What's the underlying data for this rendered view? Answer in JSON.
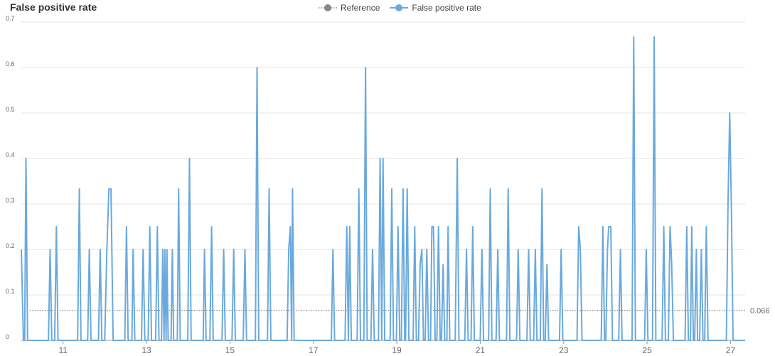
{
  "chart_data": {
    "type": "line",
    "title": "False positive rate",
    "legend": [
      {
        "label": "Reference",
        "color": "#888888",
        "style": "dotted"
      },
      {
        "label": "False positive rate",
        "color": "#6aa9dd",
        "style": "solid"
      }
    ],
    "legend_placement": "top-center",
    "xlabel": "",
    "ylabel": "",
    "xlim": [
      10,
      27.35
    ],
    "ylim": [
      0,
      0.7
    ],
    "x_ticks": [
      "11",
      "13",
      "15",
      "17",
      "19",
      "21",
      "23",
      "25",
      "27"
    ],
    "y_ticks": [
      "0",
      "0.1",
      "0.2",
      "0.3",
      "0.4",
      "0.5",
      "0.6",
      "0.7"
    ],
    "grid": "horizontal",
    "reference": {
      "value": 0.066,
      "label": "0.066"
    },
    "series": [
      {
        "name": "False positive rate",
        "color": "#6aa9dd",
        "points": [
          [
            10.0,
            0.2
          ],
          [
            10.05,
            0
          ],
          [
            10.08,
            0
          ],
          [
            10.11,
            0.4
          ],
          [
            10.15,
            0
          ],
          [
            10.65,
            0
          ],
          [
            10.69,
            0.2
          ],
          [
            10.73,
            0
          ],
          [
            10.8,
            0
          ],
          [
            10.84,
            0.25
          ],
          [
            10.88,
            0
          ],
          [
            11.35,
            0
          ],
          [
            11.39,
            0.333
          ],
          [
            11.43,
            0
          ],
          [
            11.59,
            0
          ],
          [
            11.63,
            0.2
          ],
          [
            11.67,
            0
          ],
          [
            11.85,
            0
          ],
          [
            11.89,
            0.2
          ],
          [
            11.93,
            0
          ],
          [
            12.0,
            0
          ],
          [
            12.05,
            0.2
          ],
          [
            12.1,
            0.333
          ],
          [
            12.15,
            0.333
          ],
          [
            12.2,
            0
          ],
          [
            12.48,
            0
          ],
          [
            12.52,
            0.25
          ],
          [
            12.56,
            0
          ],
          [
            12.65,
            0
          ],
          [
            12.68,
            0.2
          ],
          [
            12.72,
            0
          ],
          [
            12.88,
            0
          ],
          [
            12.92,
            0.2
          ],
          [
            12.96,
            0
          ],
          [
            13.04,
            0
          ],
          [
            13.08,
            0.25
          ],
          [
            13.12,
            0
          ],
          [
            13.22,
            0
          ],
          [
            13.26,
            0.25
          ],
          [
            13.3,
            0
          ],
          [
            13.36,
            0
          ],
          [
            13.39,
            0.2
          ],
          [
            13.42,
            0
          ],
          [
            13.44,
            0.2
          ],
          [
            13.47,
            0
          ],
          [
            13.49,
            0.2
          ],
          [
            13.52,
            0
          ],
          [
            13.59,
            0
          ],
          [
            13.62,
            0.2
          ],
          [
            13.65,
            0
          ],
          [
            13.74,
            0
          ],
          [
            13.77,
            0.333
          ],
          [
            13.81,
            0
          ],
          [
            13.99,
            0
          ],
          [
            14.03,
            0.4
          ],
          [
            14.07,
            0
          ],
          [
            14.36,
            0
          ],
          [
            14.39,
            0.2
          ],
          [
            14.43,
            0
          ],
          [
            14.52,
            0
          ],
          [
            14.56,
            0.25
          ],
          [
            14.6,
            0
          ],
          [
            14.81,
            0
          ],
          [
            14.85,
            0.2
          ],
          [
            14.89,
            0
          ],
          [
            15.05,
            0
          ],
          [
            15.09,
            0.2
          ],
          [
            15.13,
            0
          ],
          [
            15.32,
            0
          ],
          [
            15.36,
            0.2
          ],
          [
            15.4,
            0
          ],
          [
            15.61,
            0
          ],
          [
            15.65,
            0.6
          ],
          [
            15.69,
            0
          ],
          [
            15.9,
            0
          ],
          [
            15.94,
            0.333
          ],
          [
            15.98,
            0
          ],
          [
            16.37,
            0
          ],
          [
            16.41,
            0.2
          ],
          [
            16.45,
            0.25
          ],
          [
            16.48,
            0
          ],
          [
            16.5,
            0.333
          ],
          [
            16.54,
            0
          ],
          [
            17.43,
            0
          ],
          [
            17.47,
            0.2
          ],
          [
            17.51,
            0
          ],
          [
            17.76,
            0
          ],
          [
            17.8,
            0.25
          ],
          [
            17.84,
            0
          ],
          [
            17.87,
            0.25
          ],
          [
            17.91,
            0
          ],
          [
            18.05,
            0
          ],
          [
            18.09,
            0.333
          ],
          [
            18.13,
            0
          ],
          [
            18.21,
            0
          ],
          [
            18.25,
            0.6
          ],
          [
            18.29,
            0
          ],
          [
            18.38,
            0
          ],
          [
            18.42,
            0.2
          ],
          [
            18.46,
            0
          ],
          [
            18.56,
            0
          ],
          [
            18.6,
            0.4
          ],
          [
            18.64,
            0
          ],
          [
            18.67,
            0.4
          ],
          [
            18.71,
            0
          ],
          [
            18.84,
            0
          ],
          [
            18.88,
            0.333
          ],
          [
            18.92,
            0
          ],
          [
            18.99,
            0
          ],
          [
            19.03,
            0.25
          ],
          [
            19.07,
            0
          ],
          [
            19.11,
            0
          ],
          [
            19.15,
            0.333
          ],
          [
            19.19,
            0
          ],
          [
            19.21,
            0
          ],
          [
            19.25,
            0.333
          ],
          [
            19.29,
            0
          ],
          [
            19.39,
            0
          ],
          [
            19.43,
            0.25
          ],
          [
            19.47,
            0
          ],
          [
            19.52,
            0
          ],
          [
            19.56,
            0.167
          ],
          [
            19.6,
            0.2
          ],
          [
            19.64,
            0
          ],
          [
            19.68,
            0
          ],
          [
            19.72,
            0.2
          ],
          [
            19.76,
            0
          ],
          [
            19.81,
            0
          ],
          [
            19.84,
            0.25
          ],
          [
            19.88,
            0.25
          ],
          [
            19.92,
            0
          ],
          [
            19.96,
            0
          ],
          [
            20.0,
            0.25
          ],
          [
            20.04,
            0
          ],
          [
            20.07,
            0
          ],
          [
            20.11,
            0.167
          ],
          [
            20.15,
            0
          ],
          [
            20.2,
            0
          ],
          [
            20.23,
            0.25
          ],
          [
            20.27,
            0
          ],
          [
            20.4,
            0
          ],
          [
            20.45,
            0.4
          ],
          [
            20.49,
            0
          ],
          [
            20.63,
            0
          ],
          [
            20.67,
            0.2
          ],
          [
            20.71,
            0
          ],
          [
            20.78,
            0
          ],
          [
            20.82,
            0.25
          ],
          [
            20.86,
            0
          ],
          [
            21.0,
            0
          ],
          [
            21.04,
            0.2
          ],
          [
            21.08,
            0
          ],
          [
            21.2,
            0
          ],
          [
            21.24,
            0.333
          ],
          [
            21.28,
            0
          ],
          [
            21.38,
            0
          ],
          [
            21.42,
            0.2
          ],
          [
            21.46,
            0
          ],
          [
            21.63,
            0
          ],
          [
            21.67,
            0.333
          ],
          [
            21.71,
            0
          ],
          [
            21.87,
            0
          ],
          [
            21.91,
            0.2
          ],
          [
            21.95,
            0
          ],
          [
            22.12,
            0
          ],
          [
            22.16,
            0.2
          ],
          [
            22.2,
            0
          ],
          [
            22.28,
            0
          ],
          [
            22.32,
            0.2
          ],
          [
            22.36,
            0
          ],
          [
            22.44,
            0
          ],
          [
            22.48,
            0.333
          ],
          [
            22.52,
            0
          ],
          [
            22.56,
            0
          ],
          [
            22.6,
            0.167
          ],
          [
            22.64,
            0
          ],
          [
            22.9,
            0
          ],
          [
            22.94,
            0.2
          ],
          [
            22.98,
            0
          ],
          [
            23.32,
            0
          ],
          [
            23.36,
            0.25
          ],
          [
            23.4,
            0.2
          ],
          [
            23.44,
            0
          ],
          [
            23.9,
            0
          ],
          [
            23.94,
            0.25
          ],
          [
            23.98,
            0
          ],
          [
            24.01,
            0
          ],
          [
            24.05,
            0.2
          ],
          [
            24.08,
            0.25
          ],
          [
            24.13,
            0.25
          ],
          [
            24.17,
            0
          ],
          [
            24.32,
            0
          ],
          [
            24.36,
            0.2
          ],
          [
            24.4,
            0
          ],
          [
            24.64,
            0
          ],
          [
            24.68,
            0.667
          ],
          [
            24.72,
            0
          ],
          [
            24.94,
            0
          ],
          [
            24.98,
            0.2
          ],
          [
            25.02,
            0
          ],
          [
            25.13,
            0
          ],
          [
            25.17,
            0.667
          ],
          [
            25.21,
            0
          ],
          [
            25.36,
            0
          ],
          [
            25.4,
            0.25
          ],
          [
            25.44,
            0
          ],
          [
            25.51,
            0
          ],
          [
            25.55,
            0.25
          ],
          [
            25.59,
            0.167
          ],
          [
            25.63,
            0
          ],
          [
            25.91,
            0
          ],
          [
            25.95,
            0.25
          ],
          [
            25.99,
            0
          ],
          [
            26.04,
            0
          ],
          [
            26.07,
            0.25
          ],
          [
            26.11,
            0
          ],
          [
            26.14,
            0
          ],
          [
            26.18,
            0.2
          ],
          [
            26.21,
            0
          ],
          [
            26.26,
            0
          ],
          [
            26.3,
            0.2
          ],
          [
            26.34,
            0
          ],
          [
            26.38,
            0
          ],
          [
            26.42,
            0.25
          ],
          [
            26.46,
            0
          ],
          [
            26.9,
            0
          ],
          [
            26.94,
            0.3
          ],
          [
            26.98,
            0.5
          ],
          [
            27.02,
            0.3
          ],
          [
            27.06,
            0
          ],
          [
            27.35,
            0
          ]
        ]
      }
    ]
  }
}
